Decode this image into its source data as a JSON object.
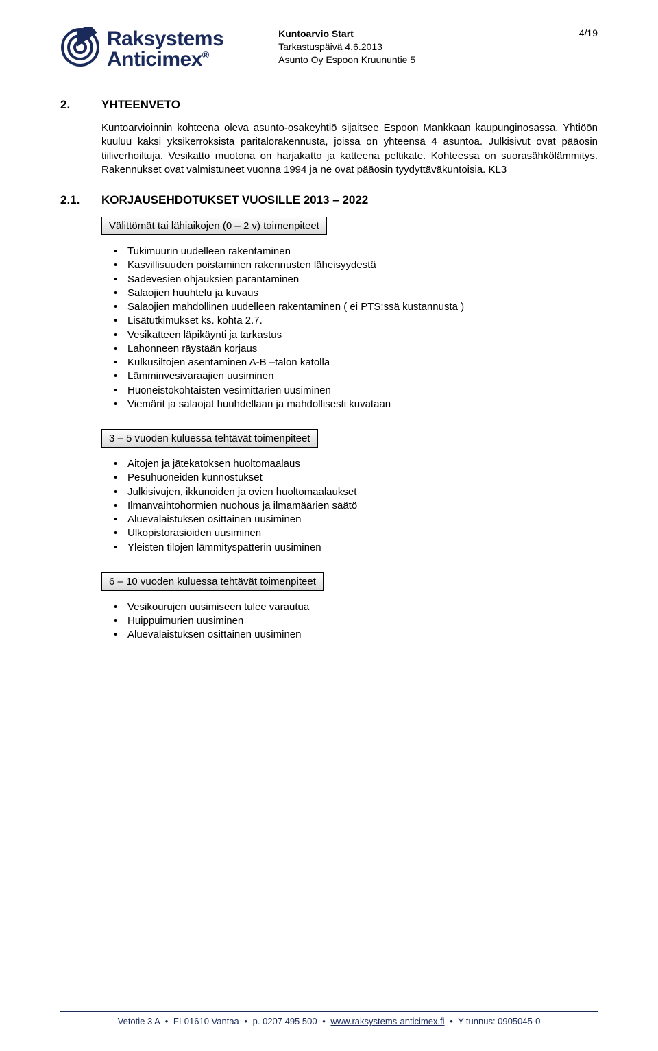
{
  "header": {
    "logo_top": "Raksystems",
    "logo_bottom": "Anticimex",
    "logo_reg": "®",
    "title": "Kuntoarvio Start",
    "date_line": "Tarkastuspäivä 4.6.2013",
    "subject_line": "Asunto Oy Espoon Kruununtie 5",
    "page": "4/19",
    "logo_stroke": "#1a2a5a"
  },
  "section2": {
    "num": "2.",
    "title": "YHTEENVETO",
    "para": "Kuntoarvioinnin kohteena oleva asunto-osakeyhtiö sijaitsee Espoon Mankkaan kaupunginosassa. Yhtiöön kuuluu kaksi yksikerroksista paritalorakennusta, joissa on yhteensä 4 asuntoa. Julkisivut ovat pääosin tiiliverhoiltuja. Vesikatto muotona on harjakatto ja katteena peltikate. Kohteessa on suorasähkölämmitys. Rakennukset ovat valmistuneet vuonna 1994 ja ne ovat pääosin tyydyttäväkuntoisia. KL3"
  },
  "section21": {
    "num": "2.1.",
    "title": "KORJAUSEHDOTUKSET VUOSILLE 2013 – 2022",
    "box1": "Välittömät tai lähiaikojen (0 – 2 v) toimenpiteet",
    "list1": [
      "Tukimuurin uudelleen rakentaminen",
      "Kasvillisuuden poistaminen rakennusten läheisyydestä",
      "Sadevesien ohjauksien parantaminen",
      "Salaojien huuhtelu ja kuvaus",
      "Salaojien mahdollinen uudelleen rakentaminen ( ei PTS:ssä kustannusta )",
      "Lisätutkimukset ks. kohta 2.7.",
      "Vesikatteen läpikäynti ja tarkastus",
      "Lahonneen räystään korjaus",
      "Kulkusiltojen asentaminen A-B –talon katolla",
      "Lämminvesivaraajien uusiminen",
      "Huoneistokohtaisten vesimittarien uusiminen",
      "Viemärit ja salaojat huuhdellaan ja mahdollisesti kuvataan"
    ],
    "box2": "3 – 5 vuoden kuluessa tehtävät toimenpiteet",
    "list2": [
      "Aitojen ja jätekatoksen huoltomaalaus",
      "Pesuhuoneiden kunnostukset",
      "Julkisivujen, ikkunoiden ja ovien huoltomaalaukset",
      "Ilmanvaihtohormien nuohous ja ilmamäärien säätö",
      "Aluevalaistuksen osittainen uusiminen",
      "Ulkopistorasioiden uusiminen",
      "Yleisten tilojen lämmityspatterin uusiminen"
    ],
    "box3": "6 – 10 vuoden kuluessa tehtävät toimenpiteet",
    "list3": [
      "Vesikourujen uusimiseen tulee varautua",
      "Huippuimurien uusiminen",
      "Aluevalaistuksen osittainen uusiminen"
    ]
  },
  "footer": {
    "addr": "Vetotie 3 A",
    "city": "FI-01610 Vantaa",
    "phone": "p. 0207 495 500",
    "url": "www.raksystems-anticimex.fi",
    "ytunnus": "Y-tunnus: 0905045-0"
  }
}
